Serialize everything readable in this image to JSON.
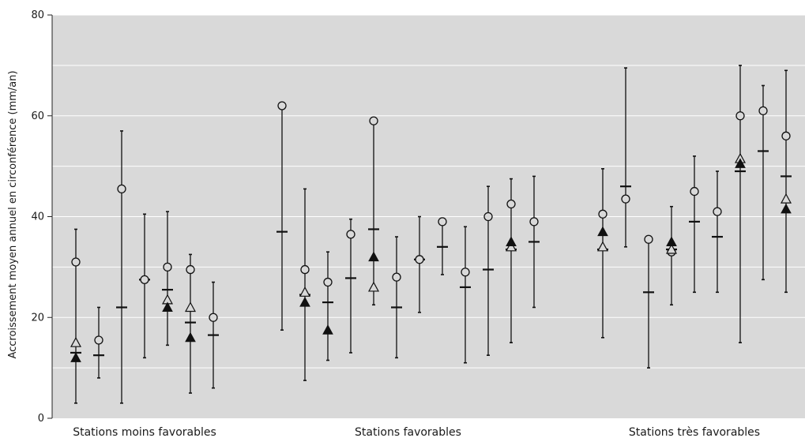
{
  "chart_data": {
    "type": "scatter",
    "title": "",
    "xlabel": "",
    "ylabel": "Accroissement moyen annuel en circonférence (mm/an)",
    "ylim": [
      0,
      80
    ],
    "yticks": [
      0,
      20,
      40,
      60,
      80
    ],
    "ytick_labels": [
      "0",
      "20",
      "40",
      "60",
      "80"
    ],
    "grid": true,
    "groups": [
      "Stations moins favorables",
      "Stations favorables",
      "Stations très favorables"
    ],
    "colors": {
      "plot_bg": "#d9d9d9",
      "grid": "#ffffff",
      "marks": "#111111"
    },
    "marker_legend": {
      "whisker": "min-max",
      "dash": "mean",
      "circle": "marker",
      "triangle_open": "marker",
      "triangle_filled": "marker"
    },
    "stations": [
      {
        "group": 0,
        "min": 3,
        "max": 37.5,
        "mean": 13,
        "circle": 31,
        "tri_open": 15,
        "tri_filled": 12
      },
      {
        "group": 0,
        "min": 8,
        "max": 22,
        "mean": 12.5,
        "circle": 15.5,
        "tri_open": null,
        "tri_filled": null
      },
      {
        "group": 0,
        "min": 3,
        "max": 57,
        "mean": 22,
        "circle": 45.5,
        "tri_open": null,
        "tri_filled": null
      },
      {
        "group": 0,
        "min": 12,
        "max": 40.5,
        "mean": 27.5,
        "circle": 27.5,
        "tri_open": null,
        "tri_filled": null
      },
      {
        "group": 0,
        "min": 14.5,
        "max": 41,
        "mean": 25.5,
        "circle": 30,
        "tri_open": 23.5,
        "tri_filled": 22
      },
      {
        "group": 0,
        "min": 5,
        "max": 32.5,
        "mean": 19,
        "circle": 29.5,
        "tri_open": 22,
        "tri_filled": 16
      },
      {
        "group": 0,
        "min": 6,
        "max": 27,
        "mean": 16.5,
        "circle": 20,
        "tri_open": null,
        "tri_filled": null
      },
      {
        "group": 1,
        "min": 17.5,
        "max": 62,
        "mean": 37,
        "circle": 62,
        "tri_open": null,
        "tri_filled": null
      },
      {
        "group": 1,
        "min": 7.5,
        "max": 45.5,
        "mean": 24.5,
        "circle": 29.5,
        "tri_open": 25,
        "tri_filled": 23
      },
      {
        "group": 1,
        "min": 11.5,
        "max": 33,
        "mean": 23,
        "circle": 27,
        "tri_open": null,
        "tri_filled": 17.5
      },
      {
        "group": 1,
        "min": 13,
        "max": 39.5,
        "mean": 27.8,
        "circle": 36.5,
        "tri_open": null,
        "tri_filled": null
      },
      {
        "group": 1,
        "min": 22.5,
        "max": 59,
        "mean": 37.5,
        "circle": 59,
        "tri_open": 26,
        "tri_filled": 32
      },
      {
        "group": 1,
        "min": 12,
        "max": 36,
        "mean": 22,
        "circle": 28,
        "tri_open": null,
        "tri_filled": null
      },
      {
        "group": 1,
        "min": 21,
        "max": 40,
        "mean": 31.5,
        "circle": 31.5,
        "tri_open": null,
        "tri_filled": null
      },
      {
        "group": 1,
        "min": 28.5,
        "max": 39,
        "mean": 34,
        "circle": 39,
        "tri_open": null,
        "tri_filled": null
      },
      {
        "group": 1,
        "min": 11,
        "max": 38,
        "mean": 26,
        "circle": 29,
        "tri_open": null,
        "tri_filled": null
      },
      {
        "group": 1,
        "min": 12.5,
        "max": 46,
        "mean": 29.5,
        "circle": 40,
        "tri_open": null,
        "tri_filled": null
      },
      {
        "group": 1,
        "min": 15,
        "max": 47.5,
        "mean": 33.5,
        "circle": 42.5,
        "tri_open": 34,
        "tri_filled": 35
      },
      {
        "group": 1,
        "min": 22,
        "max": 48,
        "mean": 35,
        "circle": 39,
        "tri_open": null,
        "tri_filled": null
      },
      {
        "group": 2,
        "min": 16,
        "max": 49.5,
        "mean": 33.5,
        "circle": 40.5,
        "tri_open": 34,
        "tri_filled": 37
      },
      {
        "group": 2,
        "min": 34,
        "max": 69.5,
        "mean": 46,
        "circle": 43.5,
        "tri_open": null,
        "tri_filled": null
      },
      {
        "group": 2,
        "min": 10,
        "max": 35.5,
        "mean": 25,
        "circle": 35.5,
        "tri_open": null,
        "tri_filled": null
      },
      {
        "group": 2,
        "min": 22.5,
        "max": 42,
        "mean": 33.5,
        "circle": 33,
        "tri_open": 33.5,
        "tri_filled": 35
      },
      {
        "group": 2,
        "min": 25,
        "max": 52,
        "mean": 39,
        "circle": 45,
        "tri_open": null,
        "tri_filled": null
      },
      {
        "group": 2,
        "min": 25,
        "max": 49,
        "mean": 36,
        "circle": 41,
        "tri_open": null,
        "tri_filled": null
      },
      {
        "group": 2,
        "min": 15,
        "max": 70,
        "mean": 49,
        "circle": 60,
        "tri_open": 51.5,
        "tri_filled": 50.5
      },
      {
        "group": 2,
        "min": 27.5,
        "max": 66,
        "mean": 53,
        "circle": 61,
        "tri_open": null,
        "tri_filled": null
      },
      {
        "group": 2,
        "min": 25,
        "max": 69,
        "mean": 48,
        "circle": 56,
        "tri_open": 43.5,
        "tri_filled": 41.5
      }
    ]
  }
}
